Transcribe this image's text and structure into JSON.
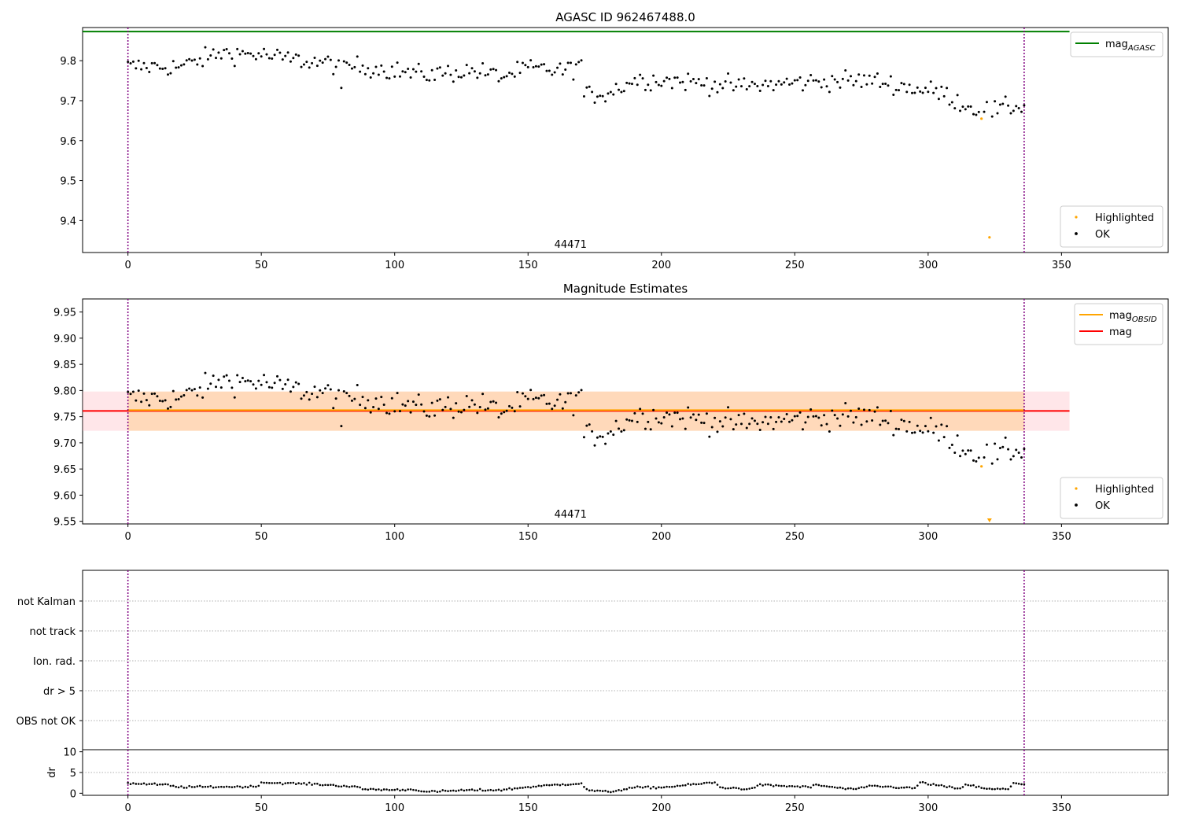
{
  "chart_data": [
    {
      "type": "scatter",
      "title": "AGASC ID 962467488.0",
      "xlabel": "",
      "ylabel": "",
      "xlim": [
        -17,
        390
      ],
      "ylim": [
        9.32,
        9.883
      ],
      "x_ticks": [
        0,
        50,
        100,
        150,
        200,
        250,
        300,
        350
      ],
      "y_ticks": [
        9.4,
        9.5,
        9.6,
        9.7,
        9.8
      ],
      "vlines": [
        0,
        336
      ],
      "hlines": [
        {
          "name": "mag_AGASC",
          "y": 9.873,
          "x_range": [
            -17,
            353
          ],
          "color": "#008000"
        }
      ],
      "annotation": {
        "text": "44471",
        "x": 168,
        "y": 9.332
      },
      "highlighted": [
        [
          320,
          9.655
        ],
        [
          323,
          9.358
        ]
      ],
      "ok_segments": [
        [
          0,
          9.785
        ],
        [
          15,
          9.785
        ],
        [
          20,
          9.785
        ],
        [
          35,
          9.82
        ],
        [
          50,
          9.815
        ],
        [
          55,
          9.808
        ],
        [
          68,
          9.798
        ],
        [
          80,
          9.79
        ],
        [
          95,
          9.78
        ],
        [
          110,
          9.765
        ],
        [
          130,
          9.775
        ],
        [
          140,
          9.76
        ],
        [
          150,
          9.78
        ],
        [
          165,
          9.775
        ],
        [
          170,
          9.795
        ]
      ],
      "ok_segments_2": [
        [
          171,
          9.712
        ],
        [
          180,
          9.72
        ],
        [
          190,
          9.752
        ],
        [
          200,
          9.752
        ],
        [
          215,
          9.745
        ],
        [
          230,
          9.735
        ],
        [
          250,
          9.745
        ],
        [
          265,
          9.75
        ],
        [
          280,
          9.75
        ],
        [
          295,
          9.73
        ],
        [
          305,
          9.72
        ],
        [
          315,
          9.685
        ],
        [
          325,
          9.675
        ],
        [
          336,
          9.69
        ]
      ],
      "legends": [
        {
          "position": "top-right",
          "entries": [
            {
              "label": "mag",
              "sub": "AGASC",
              "color": "#008000",
              "kind": "line"
            }
          ]
        },
        {
          "position": "bottom-right",
          "entries": [
            {
              "label": "Highlighted",
              "color": "#ffa500",
              "kind": "dot"
            },
            {
              "label": "OK",
              "color": "#000000",
              "kind": "dot"
            }
          ]
        }
      ]
    },
    {
      "type": "scatter",
      "title": "Magnitude Estimates",
      "xlabel": "",
      "ylabel": "",
      "xlim": [
        -17,
        390
      ],
      "ylim": [
        9.545,
        9.975
      ],
      "x_ticks": [
        0,
        50,
        100,
        150,
        200,
        250,
        300,
        350
      ],
      "y_ticks": [
        9.55,
        9.6,
        9.65,
        9.7,
        9.75,
        9.8,
        9.85,
        9.9,
        9.95
      ],
      "vlines": [
        0,
        336
      ],
      "hlines": [
        {
          "name": "mag",
          "y": 9.761,
          "x_range": [
            -17,
            353
          ],
          "color": "#ff0000"
        },
        {
          "name": "mag_OBSID",
          "y": 9.761,
          "x_range": [
            0,
            336
          ],
          "color": "#ffa500"
        }
      ],
      "bands": [
        {
          "name": "mag-band",
          "y_range": [
            9.723,
            9.798
          ],
          "x_range": [
            -17,
            353
          ],
          "color": "#ffb6c1"
        },
        {
          "name": "mag-obsid-band",
          "y_range": [
            9.723,
            9.798
          ],
          "x_range": [
            0,
            336
          ],
          "color": "#ffa500"
        }
      ],
      "annotation": {
        "text": "44471",
        "x": 168,
        "y": 9.557
      },
      "highlighted": [
        [
          320,
          9.655
        ]
      ],
      "highlighted_clipped": [
        [
          323,
          9.551
        ]
      ],
      "legends": [
        {
          "position": "top-right",
          "entries": [
            {
              "label": "mag",
              "sub": "OBSID",
              "color": "#ffa500",
              "kind": "line"
            },
            {
              "label": "mag",
              "sub": "",
              "color": "#ff0000",
              "kind": "line"
            }
          ]
        },
        {
          "position": "bottom-right",
          "entries": [
            {
              "label": "Highlighted",
              "color": "#ffa500",
              "kind": "dot"
            },
            {
              "label": "OK",
              "color": "#000000",
              "kind": "dot"
            }
          ]
        }
      ]
    },
    {
      "type": "scatter",
      "title": "",
      "xlabel": "",
      "ylabel": "",
      "xlim": [
        -17,
        390
      ],
      "categories": [
        "not Kalman",
        "not track",
        "Ion. rad.",
        "dr > 5",
        "OBS not OK"
      ],
      "vlines": [
        0,
        336
      ],
      "grid": true
    },
    {
      "type": "scatter",
      "title": "",
      "xlabel": "",
      "ylabel": "dr",
      "xlim": [
        -17,
        390
      ],
      "ylim": [
        -0.5,
        10.5
      ],
      "x_ticks": [
        0,
        50,
        100,
        150,
        200,
        250,
        300,
        350
      ],
      "y_ticks": [
        0,
        5,
        10
      ],
      "vlines": [
        0,
        336
      ],
      "hline_grid": [
        5
      ],
      "dr_profile": [
        [
          0,
          2.4
        ],
        [
          15,
          2.0
        ],
        [
          18,
          1.5
        ],
        [
          48,
          1.6
        ],
        [
          50,
          2.6
        ],
        [
          70,
          2.2
        ],
        [
          85,
          1.6
        ],
        [
          88,
          1.0
        ],
        [
          100,
          0.8
        ],
        [
          108,
          0.9
        ],
        [
          112,
          0.3
        ],
        [
          125,
          0.7
        ],
        [
          140,
          0.8
        ],
        [
          150,
          1.5
        ],
        [
          160,
          2.0
        ],
        [
          170,
          2.4
        ],
        [
          172,
          0.8
        ],
        [
          180,
          0.3
        ],
        [
          190,
          1.4
        ],
        [
          200,
          1.4
        ],
        [
          220,
          2.6
        ],
        [
          222,
          1.4
        ],
        [
          234,
          1.0
        ],
        [
          236,
          2.0
        ],
        [
          256,
          1.5
        ],
        [
          258,
          2.0
        ],
        [
          270,
          1.0
        ],
        [
          276,
          1.2
        ],
        [
          278,
          1.8
        ],
        [
          295,
          1.2
        ],
        [
          297,
          2.6
        ],
        [
          312,
          1.0
        ],
        [
          314,
          2.2
        ],
        [
          322,
          1.0
        ],
        [
          330,
          1.0
        ],
        [
          332,
          2.5
        ],
        [
          336,
          2.2
        ]
      ]
    }
  ]
}
